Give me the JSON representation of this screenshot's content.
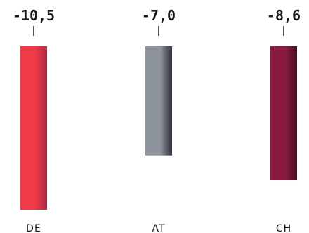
{
  "chart_data": {
    "type": "bar",
    "categories": [
      "DE",
      "AT",
      "CH"
    ],
    "values": [
      -10.5,
      -7.0,
      -8.6
    ],
    "value_labels": [
      "-10,5",
      "-7,0",
      "-8,6"
    ],
    "ylim": [
      -10.5,
      0
    ],
    "orientation": "downward",
    "grid": false,
    "legend": "none",
    "colors": {
      "DE": [
        "#f03a47",
        "#b02a46"
      ],
      "AT": [
        "#8e949c",
        "#2f3340"
      ],
      "CH": [
        "#8a1a40",
        "#4a0d26"
      ]
    }
  }
}
